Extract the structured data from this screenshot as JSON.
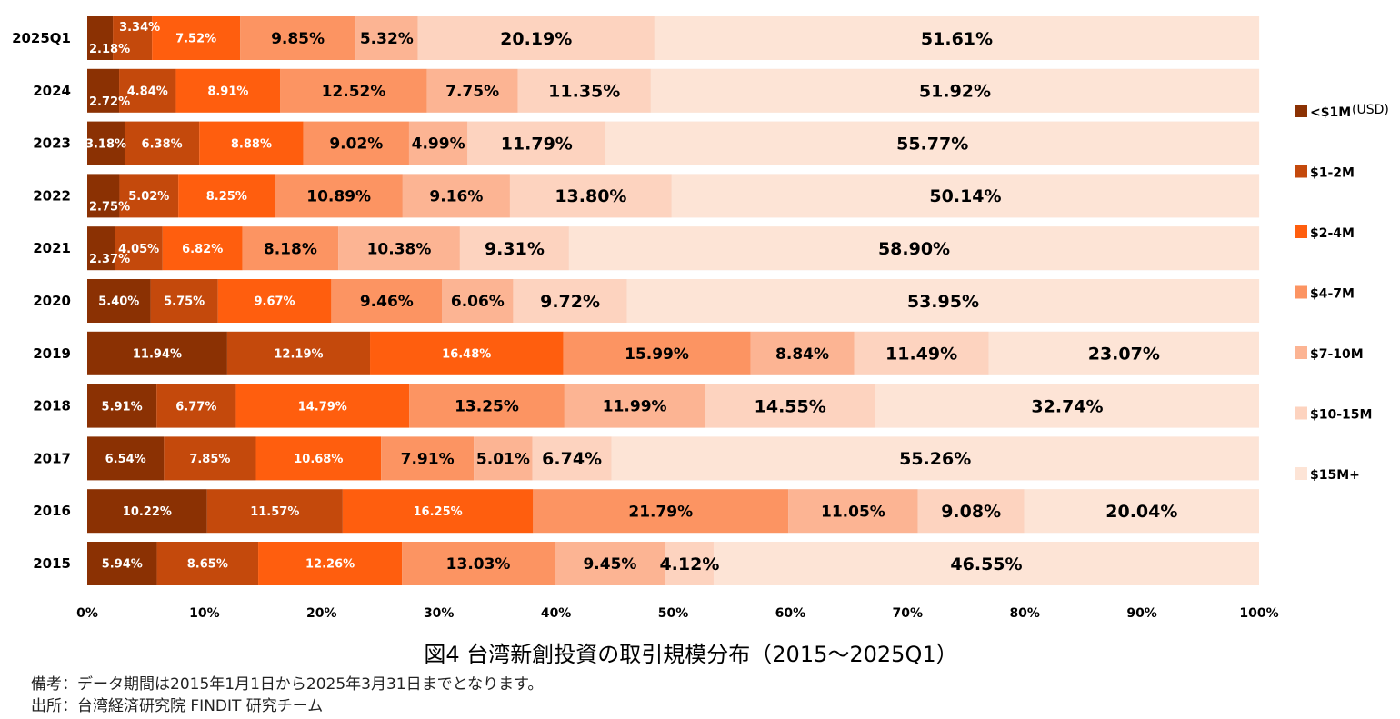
{
  "chart_data": {
    "type": "bar",
    "orientation": "horizontal",
    "stacked": "100%",
    "title": "図4 台湾新創投資の取引規模分布（2015～2025Q1）",
    "categories": [
      "2025Q1",
      "2024",
      "2023",
      "2022",
      "2021",
      "2020",
      "2019",
      "2018",
      "2017",
      "2016",
      "2015"
    ],
    "series": [
      {
        "name": "<$1M",
        "color": "#8b3103",
        "values": [
          2.18,
          2.72,
          3.18,
          2.75,
          2.37,
          5.4,
          11.94,
          5.91,
          6.54,
          10.22,
          5.94
        ]
      },
      {
        "name": "$1-2M",
        "color": "#c4490c",
        "values": [
          3.34,
          4.84,
          6.38,
          5.02,
          4.05,
          5.75,
          12.19,
          6.77,
          7.85,
          11.57,
          8.65
        ]
      },
      {
        "name": "$2-4M",
        "color": "#ff5e0e",
        "values": [
          7.52,
          8.91,
          8.88,
          8.25,
          6.82,
          9.67,
          16.48,
          14.79,
          10.68,
          16.25,
          12.26
        ]
      },
      {
        "name": "$4-7M",
        "color": "#fc9462",
        "values": [
          9.85,
          12.52,
          9.02,
          10.89,
          8.18,
          9.46,
          15.99,
          13.25,
          7.91,
          21.79,
          13.03
        ]
      },
      {
        "name": "$7-10M",
        "color": "#fcb493",
        "values": [
          5.32,
          7.75,
          4.99,
          9.16,
          10.38,
          6.06,
          8.84,
          11.99,
          5.01,
          11.05,
          9.45
        ]
      },
      {
        "name": "$10-15M",
        "color": "#fdd3bf",
        "values": [
          20.19,
          11.35,
          11.79,
          13.8,
          9.31,
          9.72,
          11.49,
          14.55,
          6.74,
          9.08,
          4.12
        ]
      },
      {
        "name": "$15M+",
        "color": "#fde4d6",
        "values": [
          51.61,
          51.92,
          55.77,
          50.14,
          58.9,
          53.95,
          23.07,
          32.74,
          55.26,
          20.04,
          46.55
        ]
      }
    ],
    "xlim": [
      0,
      100
    ],
    "xticks": [
      "0%",
      "10%",
      "20%",
      "30%",
      "40%",
      "50%",
      "60%",
      "70%",
      "80%",
      "90%",
      "100%"
    ],
    "legend": {
      "placement": "right",
      "unit": "(USD)"
    },
    "grid": false
  },
  "notes": {
    "remark": "備考：データ期間は2015年1月1日から2025年3月31日までとなります。",
    "source": "出所：台湾経済研究院 FINDIT 研究チーム"
  }
}
